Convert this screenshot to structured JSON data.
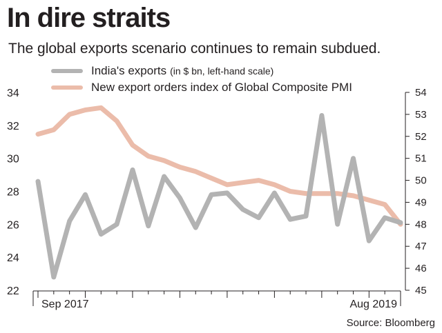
{
  "title": "In dire straits",
  "subtitle": "The global exports scenario continues to remain subdued.",
  "source": "Source: Bloomberg",
  "colors": {
    "exports": "#b3b3b3",
    "pmi": "#ebbcaa",
    "text": "#231f20"
  },
  "chart_data": {
    "type": "line",
    "x": [
      "Sep 2017",
      "Oct 2017",
      "Nov 2017",
      "Dec 2017",
      "Jan 2018",
      "Feb 2018",
      "Mar 2018",
      "Apr 2018",
      "May 2018",
      "Jun 2018",
      "Jul 2018",
      "Aug 2018",
      "Sep 2018",
      "Oct 2018",
      "Nov 2018",
      "Dec 2018",
      "Jan 2019",
      "Feb 2019",
      "Mar 2019",
      "Apr 2019",
      "May 2019",
      "Jun 2019",
      "Jul 2019",
      "Aug 2019"
    ],
    "x_tick_labels": [
      {
        "index": 0,
        "label": "Sep 2017"
      },
      {
        "index": 23,
        "label": "Aug 2019"
      }
    ],
    "series": [
      {
        "name": "India's exports",
        "legend_label": "India's exports",
        "legend_note": "(in $ bn, left-hand scale)",
        "axis": "left",
        "color": "#b3b3b3",
        "values": [
          28.6,
          22.8,
          26.2,
          27.8,
          25.4,
          26.0,
          29.3,
          25.9,
          28.9,
          27.6,
          25.8,
          27.8,
          27.9,
          26.9,
          26.4,
          27.9,
          26.3,
          26.5,
          32.6,
          26.0,
          30.0,
          25.0,
          26.4,
          26.1
        ]
      },
      {
        "name": "New export orders index of Global Composite PMI",
        "legend_label": "New export orders index of Global Composite PMI",
        "axis": "right",
        "color": "#ebbcaa",
        "values": [
          52.1,
          52.3,
          53.0,
          53.2,
          53.3,
          52.7,
          51.6,
          51.1,
          50.9,
          50.6,
          50.4,
          50.1,
          49.8,
          49.9,
          50.0,
          49.8,
          49.5,
          49.4,
          49.4,
          49.4,
          49.3,
          49.1,
          48.9,
          48.0
        ]
      }
    ],
    "y_left": {
      "min": 22,
      "max": 34,
      "ticks": [
        22,
        24,
        26,
        28,
        30,
        32,
        34
      ]
    },
    "y_right": {
      "min": 45,
      "max": 54,
      "ticks": [
        45,
        46,
        47,
        48,
        49,
        50,
        51,
        52,
        53,
        54
      ]
    },
    "grid": false,
    "legend_placement": "top-left"
  }
}
